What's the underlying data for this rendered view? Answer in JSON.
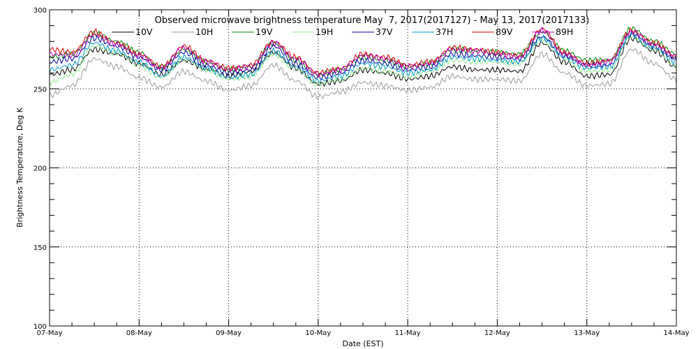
{
  "chart_data": {
    "type": "line",
    "title": "Observed microwave brightness temperature May  7, 2017(2017127) - May 13, 2017(2017133)",
    "xlabel": "Date (EST)",
    "ylabel": "Brightness Temperature, Deg K",
    "ylim": [
      100,
      300
    ],
    "xlim": [
      0,
      7
    ],
    "x_unit": "days since 07-May",
    "yticks": [
      "100",
      "150",
      "200",
      "250",
      "300"
    ],
    "xticks": [
      "07-May",
      "08-May",
      "09-May",
      "10-May",
      "11-May",
      "12-May",
      "13-May",
      "14-May"
    ],
    "grid": true,
    "legend_position": "top",
    "x": [
      0.0,
      0.25,
      0.5,
      0.75,
      1.0,
      1.25,
      1.5,
      1.75,
      2.0,
      2.25,
      2.5,
      2.75,
      3.0,
      3.25,
      3.5,
      3.75,
      4.0,
      4.25,
      4.5,
      4.75,
      5.0,
      5.25,
      5.5,
      5.75,
      6.0,
      6.25,
      6.5,
      6.75,
      7.0
    ],
    "series": [
      {
        "name": "10V",
        "color": "#000000",
        "values": [
          259,
          262,
          275,
          272,
          266,
          259,
          268,
          263,
          258,
          261,
          273,
          263,
          253,
          255,
          262,
          260,
          256,
          258,
          264,
          262,
          262,
          261,
          279,
          267,
          258,
          259,
          282,
          274,
          264
        ]
      },
      {
        "name": "10H",
        "color": "#9a9a9a",
        "values": [
          246,
          252,
          269,
          264,
          257,
          251,
          261,
          255,
          249,
          252,
          265,
          255,
          245,
          248,
          254,
          252,
          249,
          251,
          258,
          256,
          256,
          255,
          272,
          260,
          252,
          253,
          275,
          266,
          256
        ]
      },
      {
        "name": "19V",
        "color": "#008800",
        "values": [
          270,
          272,
          285,
          280,
          273,
          263,
          275,
          267,
          262,
          264,
          279,
          268,
          259,
          262,
          270,
          268,
          264,
          266,
          275,
          274,
          273,
          272,
          286,
          274,
          268,
          268,
          288,
          280,
          272
        ]
      },
      {
        "name": "19H",
        "color": "#8fe88f",
        "values": [
          254,
          259,
          277,
          273,
          265,
          257,
          269,
          262,
          256,
          258,
          272,
          262,
          253,
          256,
          263,
          261,
          258,
          261,
          268,
          267,
          267,
          266,
          281,
          269,
          261,
          262,
          283,
          275,
          265
        ]
      },
      {
        "name": "37V",
        "color": "#0000a0",
        "values": [
          267,
          269,
          282,
          277,
          270,
          262,
          273,
          265,
          260,
          262,
          277,
          266,
          257,
          260,
          268,
          266,
          262,
          264,
          272,
          271,
          270,
          269,
          283,
          271,
          265,
          265,
          285,
          277,
          269
        ]
      },
      {
        "name": "37H",
        "color": "#0099cc",
        "values": [
          262,
          265,
          279,
          274,
          267,
          258,
          270,
          263,
          257,
          259,
          274,
          264,
          255,
          258,
          266,
          264,
          260,
          262,
          270,
          269,
          268,
          267,
          282,
          270,
          263,
          264,
          284,
          276,
          267
        ]
      },
      {
        "name": "89V",
        "color": "#dd0000",
        "values": [
          275,
          273,
          286,
          279,
          272,
          264,
          277,
          268,
          263,
          265,
          280,
          270,
          260,
          263,
          272,
          270,
          265,
          267,
          276,
          275,
          273,
          271,
          288,
          273,
          266,
          268,
          287,
          279,
          271
        ]
      },
      {
        "name": "89H",
        "color": "#bb00bb",
        "values": [
          272,
          271,
          284,
          278,
          271,
          263,
          276,
          267,
          262,
          264,
          279,
          269,
          259,
          262,
          271,
          269,
          264,
          266,
          275,
          274,
          272,
          270,
          287,
          272,
          265,
          267,
          286,
          278,
          270
        ]
      }
    ]
  }
}
